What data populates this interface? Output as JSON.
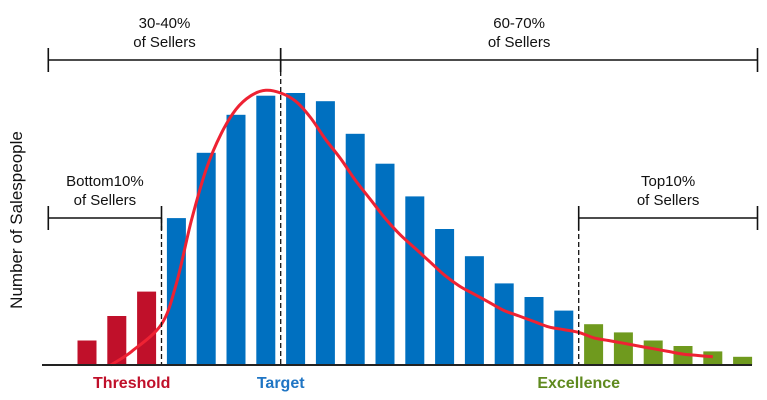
{
  "chart_data": {
    "type": "bar",
    "title": "",
    "xlabel": "",
    "ylabel": "Number of Salespeople",
    "ylim": [
      0,
      100
    ],
    "grid": false,
    "values": [
      9,
      18,
      27,
      54,
      78,
      92,
      99,
      100,
      97,
      85,
      74,
      62,
      50,
      40,
      30,
      25,
      20,
      15,
      12,
      9,
      7,
      5,
      3
    ],
    "segments": [
      {
        "name": "bottom",
        "count": 3,
        "color": "#c0102a"
      },
      {
        "name": "middle",
        "count": 14,
        "color": "#0070c0"
      },
      {
        "name": "top",
        "count": 6,
        "color": "#6f9a1e"
      }
    ],
    "curve": {
      "color": "#ee2233",
      "points": [
        [
          0.8,
          0
        ],
        [
          1.5,
          5
        ],
        [
          2.5,
          15
        ],
        [
          3.0,
          30
        ],
        [
          3.5,
          53
        ],
        [
          4.0,
          72
        ],
        [
          4.5,
          85
        ],
        [
          5.0,
          94
        ],
        [
          5.5,
          99
        ],
        [
          6.0,
          101
        ],
        [
          6.5,
          100
        ],
        [
          7.0,
          97
        ],
        [
          7.5,
          91
        ],
        [
          8.0,
          83
        ],
        [
          8.5,
          76
        ],
        [
          9.0,
          68
        ],
        [
          9.5,
          61
        ],
        [
          10.0,
          54
        ],
        [
          10.5,
          48
        ],
        [
          11.0,
          43
        ],
        [
          11.5,
          38
        ],
        [
          12.0,
          33
        ],
        [
          12.5,
          29
        ],
        [
          13.0,
          26
        ],
        [
          13.5,
          23
        ],
        [
          14.0,
          20
        ],
        [
          14.5,
          18
        ],
        [
          15.0,
          16
        ],
        [
          15.5,
          14
        ],
        [
          16.0,
          13
        ],
        [
          16.5,
          12
        ],
        [
          17.0,
          10
        ],
        [
          17.5,
          9
        ],
        [
          18.0,
          8
        ],
        [
          18.5,
          7
        ],
        [
          19.0,
          6
        ],
        [
          19.5,
          5
        ],
        [
          20.0,
          4
        ],
        [
          20.5,
          3.5
        ],
        [
          21.0,
          3
        ]
      ]
    },
    "ranges": [
      {
        "label1": "30-40%",
        "label2": "of Sellers",
        "from": -1.3,
        "to": 6.5,
        "level": "top"
      },
      {
        "label1": "60-70%",
        "label2": "of Sellers",
        "from": 6.5,
        "to": 22.5,
        "level": "top"
      },
      {
        "label1": "Bottom10%",
        "label2": "of Sellers",
        "from": -1.3,
        "to": 2.5,
        "level": "mid"
      },
      {
        "label1": "Top10%",
        "label2": "of Sellers",
        "from": 16.5,
        "to": 22.5,
        "level": "mid"
      }
    ],
    "dividers": [
      2.5,
      6.5,
      16.5
    ],
    "markers": [
      {
        "label": "Threshold",
        "x": 1.5,
        "color": "#c0102a"
      },
      {
        "label": "Target",
        "x": 6.5,
        "color": "#1f75c4"
      },
      {
        "label": "Excellence",
        "x": 16.5,
        "color": "#5f8a1e"
      }
    ]
  }
}
